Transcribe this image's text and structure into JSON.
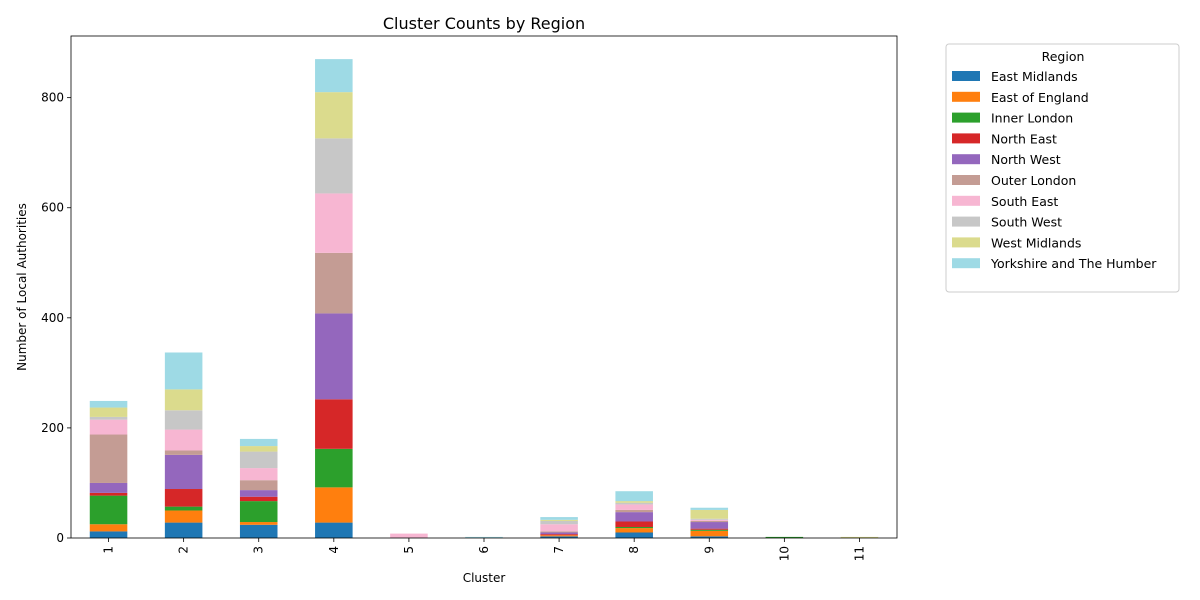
{
  "chart_data": {
    "type": "bar",
    "stacked": true,
    "title": "Cluster Counts by Region",
    "xlabel": "Cluster",
    "ylabel": "Number of Local Authorities",
    "ylim": [
      0,
      912
    ],
    "yticks": [
      0,
      200,
      400,
      600,
      800
    ],
    "categories": [
      "1",
      "2",
      "3",
      "4",
      "5",
      "6",
      "7",
      "8",
      "9",
      "10",
      "11"
    ],
    "legend_title": "Region",
    "legend_position": "outside-right",
    "series": [
      {
        "name": "East Midlands",
        "color": "#1f77b4",
        "values": [
          12,
          28,
          24,
          28,
          0,
          0,
          3,
          10,
          3,
          0,
          0
        ]
      },
      {
        "name": "East of England",
        "color": "#ff7f0e",
        "values": [
          13,
          22,
          5,
          64,
          0,
          0,
          2,
          8,
          10,
          0,
          0
        ]
      },
      {
        "name": "Inner London",
        "color": "#2ca02c",
        "values": [
          52,
          7,
          38,
          70,
          0,
          0,
          0,
          2,
          2,
          2,
          0
        ]
      },
      {
        "name": "North East",
        "color": "#d62728",
        "values": [
          5,
          32,
          8,
          90,
          0,
          0,
          2,
          10,
          2,
          0,
          0
        ]
      },
      {
        "name": "North West",
        "color": "#9467bd",
        "values": [
          18,
          62,
          12,
          156,
          0,
          0,
          3,
          17,
          12,
          0,
          0
        ]
      },
      {
        "name": "Outer London",
        "color": "#c49c94",
        "values": [
          88,
          8,
          18,
          110,
          0,
          0,
          2,
          4,
          2,
          0,
          0
        ]
      },
      {
        "name": "South East",
        "color": "#f7b6d2",
        "values": [
          27,
          38,
          22,
          108,
          8,
          0,
          13,
          10,
          2,
          0,
          0
        ]
      },
      {
        "name": "South West",
        "color": "#c7c7c7",
        "values": [
          5,
          35,
          30,
          100,
          0,
          0,
          6,
          3,
          2,
          0,
          0
        ]
      },
      {
        "name": "West Midlands",
        "color": "#dbdb8d",
        "values": [
          17,
          38,
          10,
          84,
          0,
          0,
          2,
          3,
          16,
          0,
          2
        ]
      },
      {
        "name": "Yorkshire and The Humber",
        "color": "#9edae5",
        "values": [
          12,
          67,
          13,
          60,
          0,
          2,
          5,
          18,
          4,
          0,
          0
        ]
      }
    ]
  }
}
